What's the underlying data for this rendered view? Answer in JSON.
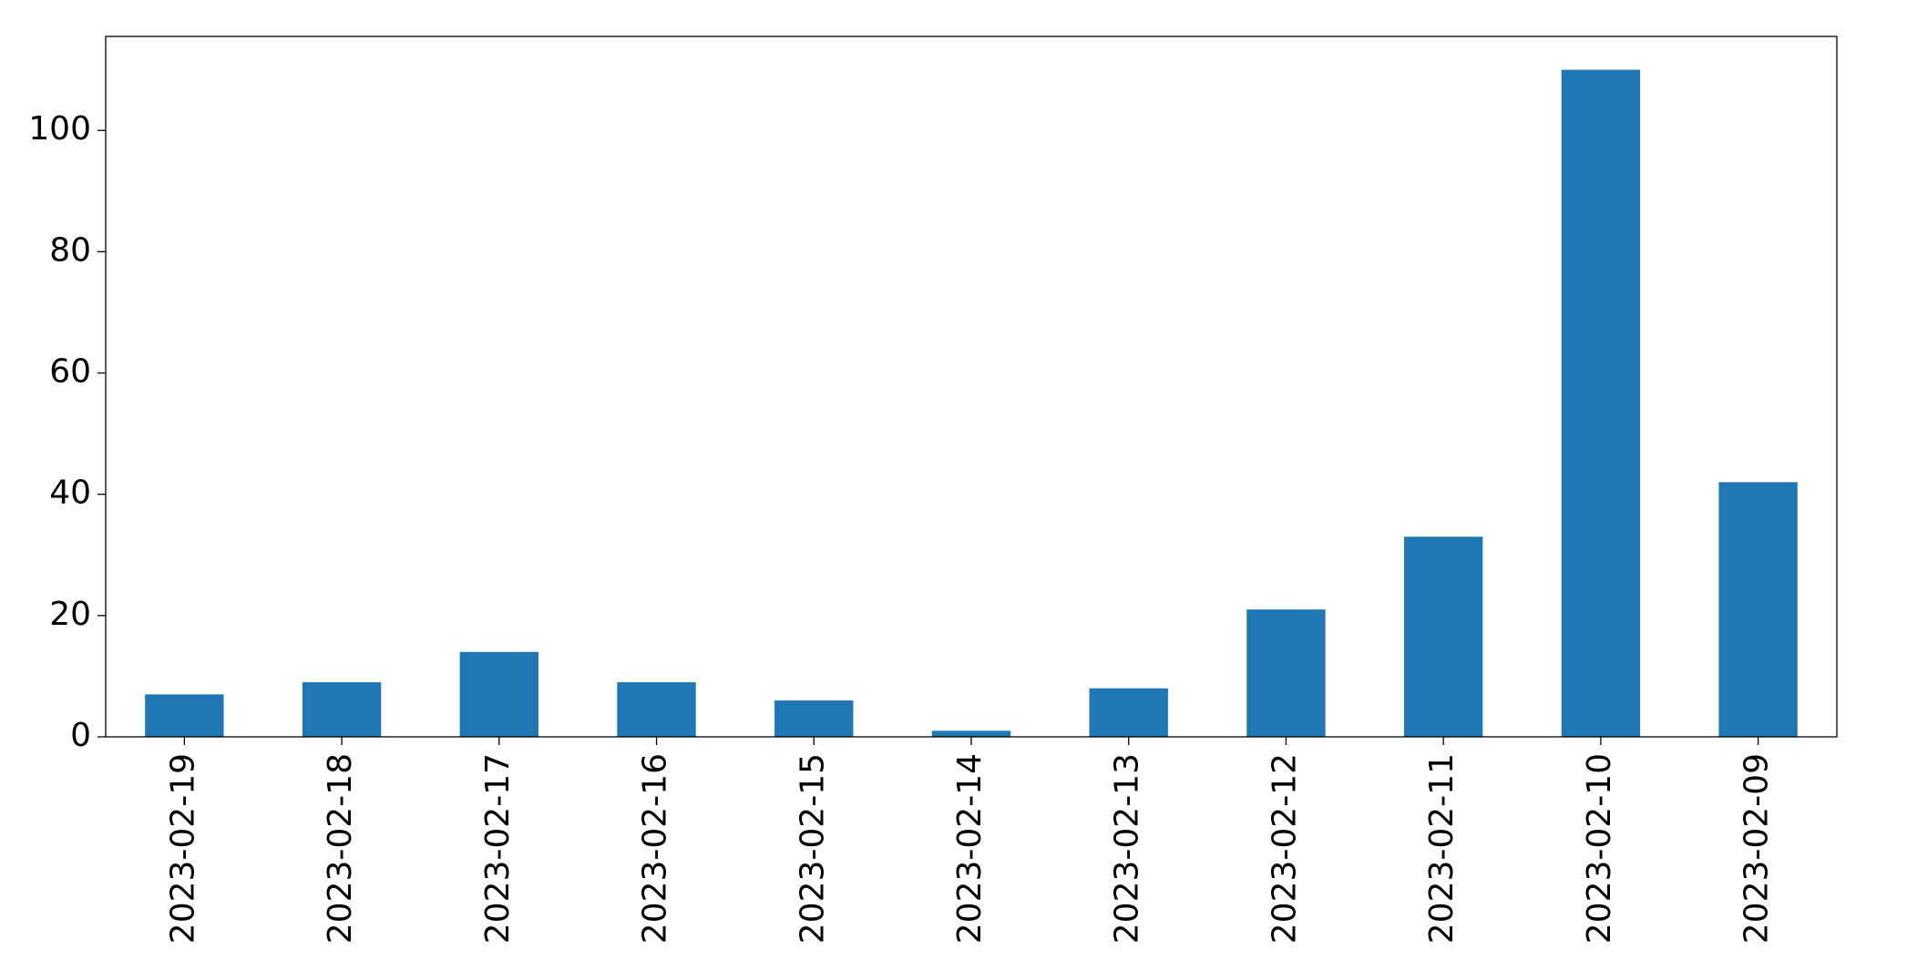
{
  "chart_data": {
    "type": "bar",
    "categories": [
      "2023-02-19",
      "2023-02-18",
      "2023-02-17",
      "2023-02-16",
      "2023-02-15",
      "2023-02-14",
      "2023-02-13",
      "2023-02-12",
      "2023-02-11",
      "2023-02-10",
      "2023-02-09"
    ],
    "values": [
      7,
      9,
      14,
      9,
      6,
      1,
      8,
      21,
      33,
      110,
      42
    ],
    "color": "#1f77b4",
    "ylim": [
      0,
      115.5
    ],
    "yticks": [
      0,
      20,
      40,
      60,
      80,
      100
    ],
    "grid": false
  }
}
